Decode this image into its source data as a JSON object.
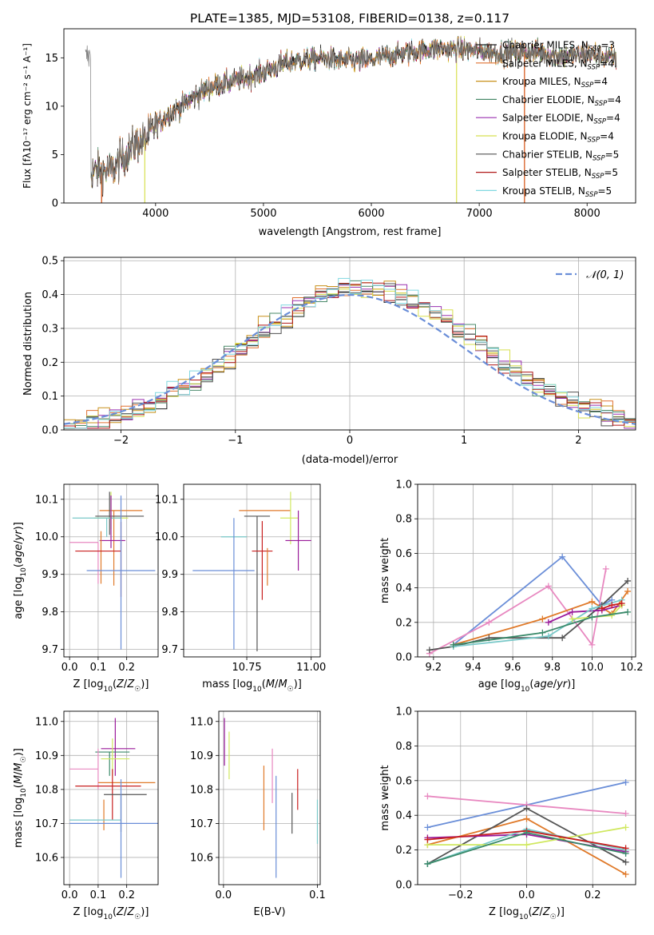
{
  "colors": {
    "Chabrier MILES": "#1f1f1f",
    "Salpeter MILES": "#e07030",
    "Kroupa MILES": "#c8901a",
    "Chabrier ELODIE": "#4a8a6a",
    "Salpeter ELODIE": "#9a30b0",
    "Kroupa ELODIE": "#d8e050",
    "Chabrier STELIB": "#505050",
    "Salpeter STELIB": "#b01818",
    "Kroupa STELIB": "#80d8e0",
    "blue": "#6a8ed8",
    "pink": "#e888c0",
    "orange": "#e07a2a",
    "purple": "#9a1a9a",
    "dark": "#555555",
    "lime": "#d0e860",
    "teal": "#78c8c8",
    "olive": "#8aa840",
    "red": "#c82020",
    "greenish": "#3a8a6a"
  },
  "chart_data": [
    {
      "type": "line",
      "title": "PLATE=1385, MJD=53108, FIBERID=0138, z=0.117",
      "xlabel": "wavelength [Angstrom, rest frame]",
      "ylabel": "Flux [fλ10⁻¹⁷ erg cm⁻² s⁻¹ A⁻¹]",
      "xlim": [
        3150,
        8450
      ],
      "ylim": [
        0,
        18
      ],
      "xticks": [
        4000,
        5000,
        6000,
        7000,
        8000
      ],
      "yticks": [
        0,
        5,
        10,
        15
      ],
      "legend_position": "top-right",
      "legend": [
        {
          "name": "Chabrier MILES",
          "base": "Chabrier MILES, N",
          "sub": "SSP",
          "tail": "=3"
        },
        {
          "name": "Salpeter MILES",
          "base": "Salpeter MILES, N",
          "sub": "SSP",
          "tail": "=4"
        },
        {
          "name": "Kroupa MILES",
          "base": "Kroupa MILES, N",
          "sub": "SSP",
          "tail": "=4"
        },
        {
          "name": "Chabrier ELODIE",
          "base": "Chabrier ELODIE, N",
          "sub": "SSP",
          "tail": "=4"
        },
        {
          "name": "Salpeter ELODIE",
          "base": "Salpeter ELODIE, N",
          "sub": "SSP",
          "tail": "=4"
        },
        {
          "name": "Kroupa ELODIE",
          "base": "Kroupa ELODIE, N",
          "sub": "SSP",
          "tail": "=4"
        },
        {
          "name": "Chabrier STELIB",
          "base": "Chabrier STELIB, N",
          "sub": "SSP",
          "tail": "=5"
        },
        {
          "name": "Salpeter STELIB",
          "base": "Salpeter STELIB, N",
          "sub": "SSP",
          "tail": "=5"
        },
        {
          "name": "Kroupa STELIB",
          "base": "Kroupa STELIB, N",
          "sub": "SSP",
          "tail": "=5"
        }
      ],
      "spectrum_anchors": [
        [
          3400,
          3.2
        ],
        [
          3600,
          3.4
        ],
        [
          3800,
          6.0
        ],
        [
          3900,
          6.5
        ],
        [
          4000,
          8.0
        ],
        [
          4100,
          9.0
        ],
        [
          4300,
          10.5
        ],
        [
          4500,
          12.0
        ],
        [
          4800,
          12.8
        ],
        [
          5000,
          13.5
        ],
        [
          5200,
          14.5
        ],
        [
          5500,
          15.0
        ],
        [
          5800,
          14.7
        ],
        [
          6000,
          14.8
        ],
        [
          6300,
          15.5
        ],
        [
          6600,
          16.0
        ],
        [
          6900,
          15.8
        ],
        [
          7200,
          15.5
        ],
        [
          7500,
          15.6
        ],
        [
          7800,
          15.2
        ],
        [
          8000,
          15.4
        ],
        [
          8250,
          15.0
        ]
      ],
      "data_start": 3350,
      "data_end": 8270,
      "model_cutoffs": [
        {
          "series": "Kroupa ELODIE",
          "start": 3900,
          "end": 6790
        },
        {
          "series": "Salpeter STELIB",
          "start": 3500,
          "end": 7420
        },
        {
          "series": "Salpeter MILES",
          "start": 3500,
          "end": 7420
        }
      ]
    },
    {
      "type": "histogram",
      "xlabel": "(data-model)/error",
      "ylabel": "Normed distribution",
      "xlim": [
        -2.5,
        2.5
      ],
      "ylim": [
        0,
        0.51
      ],
      "xticks": [
        -2,
        -1,
        0,
        1,
        2
      ],
      "yticks": [
        0.0,
        0.1,
        0.2,
        0.3,
        0.4,
        0.5
      ],
      "bin_width": 0.1,
      "reference_curve": {
        "name": "𝒩(0, 1)",
        "mean": 0,
        "sigma": 1
      },
      "series_colors": [
        "Chabrier MILES",
        "Salpeter MILES",
        "Kroupa MILES",
        "Chabrier ELODIE",
        "Salpeter ELODIE",
        "Kroupa ELODIE",
        "Chabrier STELIB",
        "Salpeter STELIB",
        "Kroupa STELIB"
      ]
    },
    {
      "type": "errorbar",
      "xlabel": "Z [log10(Z/Z☉)]",
      "ylabel": "age  [log10(age/yr)]",
      "xlim": [
        -0.02,
        0.31
      ],
      "ylim": [
        9.68,
        10.14
      ],
      "xticks": [
        0.0,
        0.1,
        0.2
      ],
      "yticks": [
        9.7,
        9.8,
        9.9,
        10.0,
        10.1
      ],
      "points": [
        {
          "color": "orange",
          "x": 0.155,
          "xerr": [
            0.05,
            0.1
          ],
          "y": 10.07,
          "yerr": [
            0.2,
            0.0
          ]
        },
        {
          "color": "dark",
          "x": 0.14,
          "xerr": [
            0.05,
            0.12
          ],
          "y": 10.055,
          "yerr": [
            0.05,
            0.065
          ]
        },
        {
          "color": "lime",
          "x": 0.145,
          "xerr": [
            0.06,
            0.06
          ],
          "y": 10.05,
          "yerr": [
            0.03,
            0.07
          ]
        },
        {
          "color": "teal",
          "x": 0.13,
          "xerr": [
            0.12,
            0.05
          ],
          "y": 10.05,
          "yerr": [
            0.05,
            0.0
          ]
        },
        {
          "color": "purple",
          "x": 0.145,
          "xerr": [
            0.04,
            0.05
          ],
          "y": 9.99,
          "yerr": [
            0.02,
            0.12
          ]
        },
        {
          "color": "pink",
          "x": 0.1,
          "xerr": [
            0.1,
            0.0
          ],
          "y": 9.985,
          "yerr": [
            0.11,
            0.0
          ]
        },
        {
          "color": "orange",
          "x": 0.11,
          "xerr": [
            0.0,
            0.0
          ],
          "y": 9.965,
          "yerr": [
            0.09,
            0.05
          ]
        },
        {
          "color": "red",
          "x": 0.1,
          "xerr": [
            0.08,
            0.08
          ],
          "y": 9.962,
          "yerr": [
            0.0,
            0.0
          ]
        },
        {
          "color": "red",
          "x": 0.18,
          "xerr": [
            0.0,
            0.0
          ],
          "y": 9.94,
          "yerr": [
            0.1,
            0.1
          ]
        },
        {
          "color": "blue",
          "x": 0.18,
          "xerr": [
            0.12,
            0.12
          ],
          "y": 9.91,
          "yerr": [
            0.21,
            0.2
          ]
        }
      ]
    },
    {
      "type": "errorbar",
      "xlabel": "mass [log10(M/M☉)]",
      "ylabel": "",
      "xlim": [
        10.505,
        11.035
      ],
      "ylim": [
        9.68,
        10.14
      ],
      "xticks": [
        10.75,
        11.0
      ],
      "yticks": [
        9.7,
        9.8,
        9.9,
        10.0,
        10.1
      ],
      "points": [
        {
          "color": "orange",
          "x": 10.82,
          "xerr": [
            0.1,
            0.1
          ],
          "y": 10.07,
          "yerr": [
            0.0,
            0.0
          ]
        },
        {
          "color": "dark",
          "x": 10.79,
          "xerr": [
            0.05,
            0.05
          ],
          "y": 10.055,
          "yerr": [
            0.36,
            0.0
          ]
        },
        {
          "color": "lime",
          "x": 10.92,
          "xerr": [
            0.04,
            0.03
          ],
          "y": 10.05,
          "yerr": [
            0.07,
            0.07
          ]
        },
        {
          "color": "teal",
          "x": 10.7,
          "xerr": [
            0.05,
            0.05
          ],
          "y": 10.0,
          "yerr": [
            0.0,
            0.0
          ]
        },
        {
          "color": "purple",
          "x": 10.95,
          "xerr": [
            0.05,
            0.05
          ],
          "y": 9.99,
          "yerr": [
            0.08,
            0.08
          ]
        },
        {
          "color": "red",
          "x": 10.81,
          "xerr": [
            0.04,
            0.04
          ],
          "y": 9.962,
          "yerr": [
            0.13,
            0.08
          ]
        },
        {
          "color": "orange",
          "x": 10.83,
          "xerr": [
            0.0,
            0.0
          ],
          "y": 9.97,
          "yerr": [
            0.1,
            0.0
          ]
        },
        {
          "color": "blue",
          "x": 10.7,
          "xerr": [
            0.16,
            0.08
          ],
          "y": 9.91,
          "yerr": [
            0.21,
            0.14
          ]
        }
      ]
    },
    {
      "type": "line",
      "xlabel": "age  [log10(age/yr)]",
      "ylabel": "mass weight",
      "xlim": [
        9.12,
        10.22
      ],
      "ylim": [
        0,
        1.0
      ],
      "xticks": [
        9.2,
        9.4,
        9.6,
        9.8,
        10.0,
        10.2
      ],
      "yticks": [
        0.0,
        0.2,
        0.4,
        0.6,
        0.8,
        1.0
      ],
      "series": [
        {
          "color": "blue",
          "x": [
            9.3,
            9.85,
            10.05,
            10.1
          ],
          "y": [
            0.07,
            0.58,
            0.3,
            0.33
          ]
        },
        {
          "color": "pink",
          "x": [
            9.18,
            9.48,
            9.78,
            10.0,
            10.07
          ],
          "y": [
            0.02,
            0.2,
            0.41,
            0.07,
            0.51
          ]
        },
        {
          "color": "orange",
          "x": [
            9.3,
            9.75,
            10.0,
            10.1,
            10.18
          ],
          "y": [
            0.07,
            0.22,
            0.32,
            0.25,
            0.38
          ]
        },
        {
          "color": "dark",
          "x": [
            9.18,
            9.3,
            9.48,
            9.85,
            10.05,
            10.18
          ],
          "y": [
            0.04,
            0.06,
            0.11,
            0.11,
            0.3,
            0.44
          ]
        },
        {
          "color": "purple",
          "x": [
            9.78,
            9.9,
            10.05,
            10.15
          ],
          "y": [
            0.2,
            0.26,
            0.27,
            0.3
          ]
        },
        {
          "color": "teal",
          "x": [
            9.3,
            9.78,
            10.0,
            10.15
          ],
          "y": [
            0.06,
            0.12,
            0.28,
            0.33
          ]
        },
        {
          "color": "lime",
          "x": [
            9.9,
            10.1,
            10.15
          ],
          "y": [
            0.22,
            0.24,
            0.3
          ]
        },
        {
          "color": "red",
          "x": [
            10.05,
            10.1,
            10.15
          ],
          "y": [
            0.28,
            0.3,
            0.31
          ]
        },
        {
          "color": "greenish",
          "x": [
            9.3,
            9.75,
            10.0,
            10.18
          ],
          "y": [
            0.07,
            0.14,
            0.23,
            0.26
          ]
        }
      ]
    },
    {
      "type": "errorbar",
      "xlabel": "Z [log10(Z/Z☉)]",
      "ylabel": "mass [log10(M/M☉)]",
      "xlim": [
        -0.02,
        0.31
      ],
      "ylim": [
        10.52,
        11.03
      ],
      "xticks": [
        0.0,
        0.1,
        0.2
      ],
      "yticks": [
        10.6,
        10.7,
        10.8,
        10.9,
        11.0
      ],
      "points": [
        {
          "color": "purple",
          "x": 0.16,
          "xerr": [
            0.05,
            0.07
          ],
          "y": 10.92,
          "yerr": [
            0.08,
            0.09
          ]
        },
        {
          "color": "greenish",
          "x": 0.14,
          "xerr": [
            0.05,
            0.07
          ],
          "y": 10.91,
          "yerr": [
            0.07,
            0.0
          ]
        },
        {
          "color": "lime",
          "x": 0.15,
          "xerr": [
            0.04,
            0.06
          ],
          "y": 10.89,
          "yerr": [
            0.05,
            0.06
          ]
        },
        {
          "color": "pink",
          "x": 0.1,
          "xerr": [
            0.1,
            0.0
          ],
          "y": 10.86,
          "yerr": [
            0.06,
            0.06
          ]
        },
        {
          "color": "orange",
          "x": 0.16,
          "xerr": [
            0.06,
            0.14
          ],
          "y": 10.82,
          "yerr": [
            0.0,
            0.0
          ]
        },
        {
          "color": "orange",
          "x": 0.12,
          "xerr": [
            0.0,
            0.0
          ],
          "y": 10.77,
          "yerr": [
            0.09,
            0.0
          ]
        },
        {
          "color": "red",
          "x": 0.15,
          "xerr": [
            0.13,
            0.1
          ],
          "y": 10.81,
          "yerr": [
            0.1,
            0.05
          ]
        },
        {
          "color": "dark",
          "x": 0.18,
          "xerr": [
            0.06,
            0.09
          ],
          "y": 10.785,
          "yerr": [
            0.11,
            0.0
          ]
        },
        {
          "color": "teal",
          "x": 0.12,
          "xerr": [
            0.12,
            0.06
          ],
          "y": 10.71,
          "yerr": [
            0.0,
            0.0
          ]
        },
        {
          "color": "blue",
          "x": 0.18,
          "xerr": [
            0.18,
            0.15
          ],
          "y": 10.7,
          "yerr": [
            0.16,
            0.13
          ]
        }
      ]
    },
    {
      "type": "errorbar",
      "xlabel": "E(B-V)",
      "ylabel": "",
      "xlim": [
        -0.005,
        0.103
      ],
      "ylim": [
        10.52,
        11.03
      ],
      "xticks": [
        0.0,
        0.1
      ],
      "yticks": [
        10.6,
        10.7,
        10.8,
        10.9,
        11.0
      ],
      "points": [
        {
          "color": "purple",
          "x": 0.001,
          "xerr": [
            0,
            0
          ],
          "y": 10.94,
          "yerr": [
            0.07,
            0.07
          ]
        },
        {
          "color": "lime",
          "x": 0.006,
          "xerr": [
            0,
            0
          ],
          "y": 10.9,
          "yerr": [
            0.07,
            0.07
          ]
        },
        {
          "color": "pink",
          "x": 0.052,
          "xerr": [
            0,
            0
          ],
          "y": 10.84,
          "yerr": [
            0.08,
            0.08
          ]
        },
        {
          "color": "orange",
          "x": 0.043,
          "xerr": [
            0,
            0
          ],
          "y": 10.77,
          "yerr": [
            0.09,
            0.1
          ]
        },
        {
          "color": "red",
          "x": 0.079,
          "xerr": [
            0,
            0
          ],
          "y": 10.8,
          "yerr": [
            0.06,
            0.06
          ]
        },
        {
          "color": "dark",
          "x": 0.073,
          "xerr": [
            0,
            0
          ],
          "y": 10.73,
          "yerr": [
            0.06,
            0.06
          ]
        },
        {
          "color": "blue",
          "x": 0.056,
          "xerr": [
            0,
            0
          ],
          "y": 10.69,
          "yerr": [
            0.15,
            0.15
          ]
        },
        {
          "color": "teal",
          "x": 0.1,
          "xerr": [
            0,
            0
          ],
          "y": 10.7,
          "yerr": [
            0.06,
            0.07
          ]
        }
      ]
    },
    {
      "type": "line",
      "xlabel": "Z [log10(Z/Z☉)]",
      "ylabel": "mass weight",
      "xlim": [
        -0.33,
        0.33
      ],
      "ylim": [
        0,
        1.0
      ],
      "xticks": [
        -0.2,
        0.0,
        0.2
      ],
      "yticks": [
        0.0,
        0.2,
        0.4,
        0.6,
        0.8,
        1.0
      ],
      "series": [
        {
          "color": "blue",
          "x": [
            -0.3,
            0.0,
            0.3
          ],
          "y": [
            0.33,
            0.46,
            0.59
          ]
        },
        {
          "color": "pink",
          "x": [
            -0.3,
            0.0,
            0.3
          ],
          "y": [
            0.51,
            0.46,
            0.41
          ]
        },
        {
          "color": "orange",
          "x": [
            -0.3,
            0.0,
            0.3
          ],
          "y": [
            0.23,
            0.38,
            0.06
          ]
        },
        {
          "color": "dark",
          "x": [
            -0.3,
            0.0,
            0.3
          ],
          "y": [
            0.12,
            0.44,
            0.13
          ]
        },
        {
          "color": "purple",
          "x": [
            -0.3,
            0.0,
            0.3
          ],
          "y": [
            0.27,
            0.29,
            0.19
          ]
        },
        {
          "color": "teal",
          "x": [
            -0.3,
            0.0,
            0.3
          ],
          "y": [
            0.12,
            0.32,
            0.2
          ]
        },
        {
          "color": "lime",
          "x": [
            -0.3,
            0.0,
            0.3
          ],
          "y": [
            0.23,
            0.23,
            0.33
          ]
        },
        {
          "color": "red",
          "x": [
            -0.3,
            0.0,
            0.3
          ],
          "y": [
            0.26,
            0.31,
            0.21
          ]
        },
        {
          "color": "greenish",
          "x": [
            -0.3,
            0.0,
            0.3
          ],
          "y": [
            0.12,
            0.3,
            0.18
          ]
        }
      ]
    }
  ]
}
